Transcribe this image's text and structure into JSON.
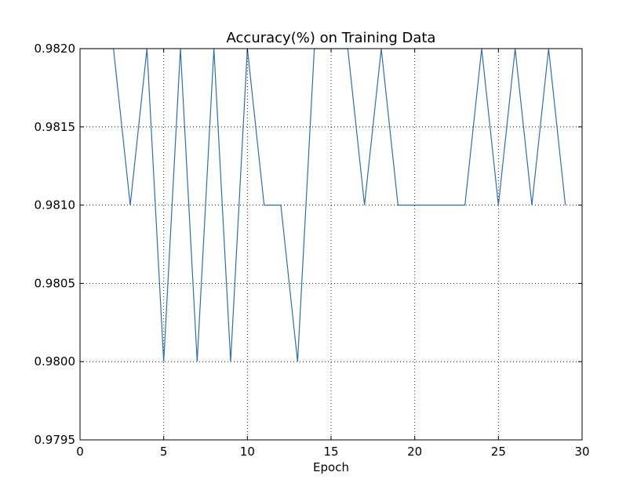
{
  "chart_data": {
    "type": "line",
    "title": "Accuracy(%) on Training Data",
    "x_label": "Epoch",
    "x": [
      0,
      1,
      2,
      3,
      4,
      5,
      6,
      7,
      8,
      9,
      10,
      11,
      12,
      13,
      14,
      15,
      16,
      17,
      18,
      19,
      20,
      21,
      22,
      23,
      24,
      25,
      26,
      27,
      28,
      29
    ],
    "series": [
      {
        "color": "#2f6fa6",
        "values": [
          0.982,
          0.982,
          0.982,
          0.981,
          0.982,
          0.98,
          0.982,
          0.98,
          0.982,
          0.98,
          0.982,
          0.981,
          0.981,
          0.98,
          0.982,
          0.982,
          0.982,
          0.981,
          0.982,
          0.981,
          0.981,
          0.981,
          0.981,
          0.981,
          0.982,
          0.981,
          0.982,
          0.981,
          0.982,
          0.981
        ]
      }
    ],
    "xlim": [
      0,
      30
    ],
    "xticks": [
      0,
      5,
      10,
      15,
      20,
      25,
      30
    ],
    "ylim": [
      0.9795,
      0.982
    ],
    "yticks": [
      {
        "value": 0.9795,
        "label": "0.9795"
      },
      {
        "value": 0.98,
        "label": "0.9800"
      },
      {
        "value": 0.9805,
        "label": "0.9805"
      },
      {
        "value": 0.981,
        "label": "0.9810"
      },
      {
        "value": 0.9815,
        "label": "0.9815"
      },
      {
        "value": 0.982,
        "label": "0.9820"
      }
    ],
    "grid": true
  }
}
